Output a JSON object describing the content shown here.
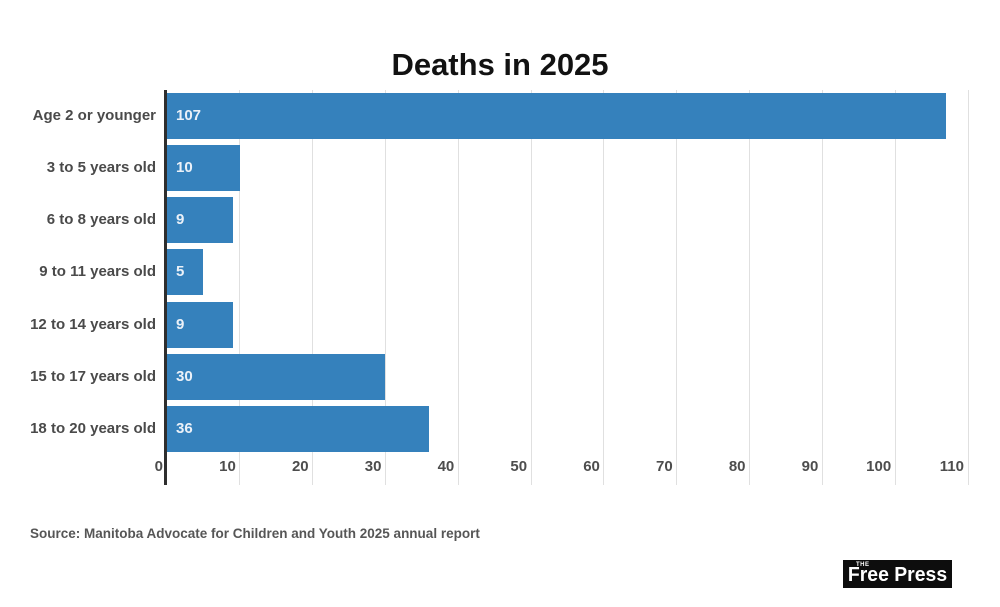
{
  "page": {
    "title": "Deaths in 2025",
    "source_note": "Source: Manitoba Advocate for Children and Youth 2025 annual report",
    "logo": {
      "prefix": "THE",
      "name": "Free Press"
    }
  },
  "colors": {
    "bar": "#3581bc",
    "bar_value_label": "#ebf1f8",
    "grid": "#e0e0e0",
    "axis_line": "#2e2e2e",
    "tick_label": "#4d4d4d",
    "category_label": "#4a4a4a",
    "title_text": "#121212",
    "source_text": "#565656",
    "logo_bg": "#0d0d0d",
    "logo_text": "#ffffff"
  },
  "chart_data": {
    "type": "bar",
    "orientation": "horizontal",
    "title": "Deaths in 2025",
    "categories": [
      "Age 2 or younger",
      "3 to 5 years old",
      "6 to 8 years old",
      "9 to 11 years old",
      "12 to 14 years old",
      "15 to 17 years old",
      "18 to 20 years old"
    ],
    "values": [
      107,
      10,
      9,
      5,
      9,
      30,
      36
    ],
    "xlabel": "",
    "ylabel": "",
    "xlim": [
      0,
      110
    ],
    "xticks": [
      0,
      10,
      20,
      30,
      40,
      50,
      60,
      70,
      80,
      90,
      100,
      110
    ],
    "grid": true,
    "legend": false,
    "value_label_position": "inside-start"
  }
}
